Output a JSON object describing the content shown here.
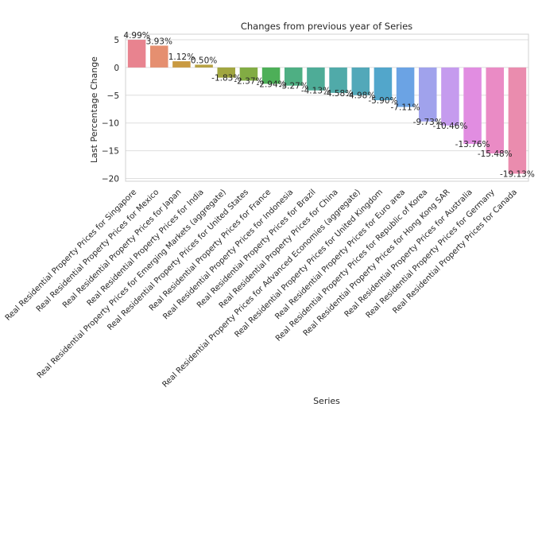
{
  "chart_data": {
    "type": "bar",
    "title": "Changes from previous year of Series",
    "xlabel": "Series",
    "ylabel": "Last Percentage Change",
    "ylim": [
      -20.5,
      6.0
    ],
    "yticks": [
      5,
      0,
      -5,
      -10,
      -15,
      -20
    ],
    "grid": true,
    "categories": [
      "Real Residential Property Prices for Singapore",
      "Real Residential Property Prices for Mexico",
      "Real Residential Property Prices for Japan",
      "Real Residential Property Prices for India",
      "Real Residential Property Prices for Emerging Markets (aggregate)",
      "Real Residential Property Prices for United States",
      "Real Residential Property Prices for France",
      "Real Residential Property Prices for Indonesia",
      "Real Residential Property Prices for Brazil",
      "Real Residential Property Prices for China",
      "Real Residential Property Prices for Advanced Economies (aggregate)",
      "Real Residential Property Prices for United Kingdom",
      "Real Residential Property Prices for Euro area",
      "Real Residential Property Prices for Republic of Korea",
      "Real Residential Property Prices for Hong Kong SAR",
      "Real Residential Property Prices for Australia",
      "Real Residential Property Prices for Germany",
      "Real Residential Property Prices for Canada"
    ],
    "values": [
      4.99,
      3.93,
      1.12,
      0.5,
      -1.83,
      -2.37,
      -2.94,
      -3.27,
      -4.13,
      -4.58,
      -4.98,
      -5.9,
      -7.11,
      -9.73,
      -10.46,
      -13.76,
      -15.48,
      -19.13
    ],
    "value_labels": [
      "4.99%",
      "3.93%",
      "1.12%",
      "0.50%",
      "-1.83%",
      "-2.37%",
      "-2.94%",
      "-3.27%",
      "-4.13%",
      "-4.58%",
      "-4.98%",
      "-5.90%",
      "-7.11%",
      "-9.73%",
      "-10.46%",
      "-13.76%",
      "-15.48%",
      "-19.13%"
    ],
    "colors": [
      "#e8838f",
      "#e58f70",
      "#c99a41",
      "#b6a041",
      "#a1a640",
      "#82ac44",
      "#4daf58",
      "#4eaf83",
      "#4eac97",
      "#50aaa9",
      "#52a8b9",
      "#52a6cb",
      "#6ba3e4",
      "#a0a2ec",
      "#c59bee",
      "#e18de1",
      "#ea8bc5",
      "#ea8cae"
    ]
  }
}
